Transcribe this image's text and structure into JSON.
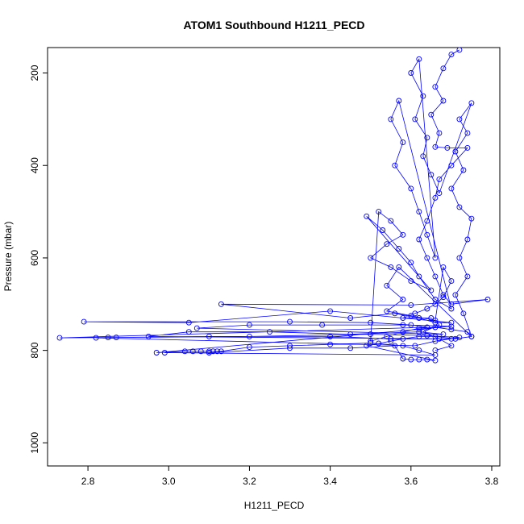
{
  "chart_data": {
    "type": "line",
    "title": "ATOM1 Southbound H1211_PECD",
    "xlabel": "H1211_PECD",
    "ylabel": "Pressure (mbar)",
    "xlim": [
      2.7,
      3.82
    ],
    "ylim": [
      1050,
      145
    ],
    "y_reversed": true,
    "x_ticks": [
      2.8,
      3.0,
      3.2,
      3.4,
      3.6,
      3.8
    ],
    "x_tick_labels": [
      "2.8",
      "3.0",
      "3.2",
      "3.4",
      "3.6",
      "3.8"
    ],
    "y_ticks": [
      200,
      400,
      600,
      800,
      1000
    ],
    "y_tick_labels": [
      "200",
      "400",
      "600",
      "800",
      "1000"
    ],
    "grid": false,
    "legend": "none",
    "series": [
      {
        "color": "#0000ff",
        "marker": "open-circle",
        "points": [
          [
            3.72,
            150
          ],
          [
            3.7,
            160
          ],
          [
            3.68,
            190
          ],
          [
            3.66,
            230
          ],
          [
            3.68,
            260
          ],
          [
            3.65,
            290
          ],
          [
            3.67,
            330
          ],
          [
            3.66,
            360
          ],
          [
            3.69,
            362
          ],
          [
            3.74,
            362
          ],
          [
            3.7,
            400
          ],
          [
            3.67,
            430
          ],
          [
            3.66,
            470
          ],
          [
            3.64,
            520
          ],
          [
            3.62,
            560
          ],
          [
            3.64,
            600
          ],
          [
            3.66,
            640
          ],
          [
            3.68,
            680
          ],
          [
            3.7,
            700
          ],
          [
            3.79,
            690
          ],
          [
            3.6,
            702
          ],
          [
            3.13,
            700
          ],
          [
            3.45,
            730
          ],
          [
            3.56,
            720
          ],
          [
            3.62,
            730
          ],
          [
            3.66,
            740
          ],
          [
            3.7,
            740
          ],
          [
            3.4,
            715
          ],
          [
            3.05,
            740
          ],
          [
            2.79,
            738
          ],
          [
            3.3,
            738
          ],
          [
            3.5,
            740
          ],
          [
            3.6,
            745
          ],
          [
            3.64,
            750
          ],
          [
            2.73,
            773
          ],
          [
            3.2,
            770
          ],
          [
            3.5,
            765
          ],
          [
            3.64,
            768
          ],
          [
            3.72,
            772
          ],
          [
            3.66,
            780
          ],
          [
            3.61,
            790
          ],
          [
            2.82,
            773
          ],
          [
            2.85,
            772
          ],
          [
            2.87,
            772
          ],
          [
            3.1,
            770
          ],
          [
            3.4,
            770
          ],
          [
            3.55,
            775
          ],
          [
            3.7,
            775
          ],
          [
            2.95,
            770
          ],
          [
            3.05,
            760
          ],
          [
            3.25,
            760
          ],
          [
            3.45,
            765
          ],
          [
            3.62,
            760
          ],
          [
            3.68,
            765
          ],
          [
            3.07,
            752
          ],
          [
            3.2,
            745
          ],
          [
            3.38,
            745
          ],
          [
            3.58,
            745
          ],
          [
            3.7,
            748
          ],
          [
            2.97,
            805
          ],
          [
            3.04,
            802
          ],
          [
            3.06,
            802
          ],
          [
            3.08,
            802
          ],
          [
            3.1,
            802
          ],
          [
            3.11,
            802
          ],
          [
            3.12,
            802
          ],
          [
            3.13,
            802
          ],
          [
            3.2,
            793
          ],
          [
            3.3,
            790
          ],
          [
            3.4,
            787
          ],
          [
            3.5,
            784
          ],
          [
            3.58,
            790
          ],
          [
            3.62,
            800
          ],
          [
            3.66,
            810
          ],
          [
            2.99,
            805
          ],
          [
            3.1,
            805
          ],
          [
            3.3,
            795
          ],
          [
            3.45,
            795
          ],
          [
            3.56,
            790
          ],
          [
            3.58,
            818
          ],
          [
            3.6,
            820
          ],
          [
            3.62,
            820
          ],
          [
            3.64,
            820
          ],
          [
            3.66,
            822
          ],
          [
            3.49,
            790
          ],
          [
            3.52,
            785
          ],
          [
            3.55,
            780
          ],
          [
            3.58,
            775
          ],
          [
            3.62,
            770
          ],
          [
            3.66,
            770
          ],
          [
            3.71,
            775
          ],
          [
            3.75,
            770
          ],
          [
            3.74,
            760
          ],
          [
            3.7,
            755
          ],
          [
            3.66,
            750
          ],
          [
            3.62,
            752
          ],
          [
            3.58,
            760
          ],
          [
            3.54,
            770
          ],
          [
            3.5,
            780
          ],
          [
            3.52,
            500
          ],
          [
            3.55,
            520
          ],
          [
            3.58,
            550
          ],
          [
            3.54,
            570
          ],
          [
            3.5,
            600
          ],
          [
            3.55,
            620
          ],
          [
            3.6,
            650
          ],
          [
            3.65,
            670
          ],
          [
            3.49,
            510
          ],
          [
            3.53,
            540
          ],
          [
            3.57,
            580
          ],
          [
            3.6,
            610
          ],
          [
            3.62,
            640
          ],
          [
            3.66,
            690
          ],
          [
            3.7,
            710
          ],
          [
            3.57,
            260
          ],
          [
            3.55,
            300
          ],
          [
            3.58,
            350
          ],
          [
            3.56,
            400
          ],
          [
            3.6,
            450
          ],
          [
            3.62,
            500
          ],
          [
            3.64,
            550
          ],
          [
            3.66,
            600
          ],
          [
            3.62,
            170
          ],
          [
            3.6,
            200
          ],
          [
            3.63,
            250
          ],
          [
            3.61,
            300
          ],
          [
            3.64,
            340
          ],
          [
            3.63,
            380
          ],
          [
            3.65,
            420
          ],
          [
            3.67,
            460
          ],
          [
            3.75,
            265
          ],
          [
            3.72,
            300
          ],
          [
            3.74,
            330
          ],
          [
            3.71,
            370
          ],
          [
            3.73,
            410
          ],
          [
            3.7,
            450
          ],
          [
            3.72,
            490
          ],
          [
            3.75,
            515
          ],
          [
            3.74,
            560
          ],
          [
            3.72,
            600
          ],
          [
            3.74,
            640
          ],
          [
            3.71,
            680
          ],
          [
            3.73,
            720
          ],
          [
            3.75,
            770
          ],
          [
            3.57,
            620
          ],
          [
            3.54,
            660
          ],
          [
            3.58,
            690
          ],
          [
            3.54,
            715
          ],
          [
            3.6,
            725
          ],
          [
            3.66,
            735
          ],
          [
            3.68,
            620
          ],
          [
            3.7,
            650
          ],
          [
            3.68,
            685
          ],
          [
            3.66,
            700
          ],
          [
            3.64,
            710
          ],
          [
            3.61,
            720
          ],
          [
            3.58,
            730
          ],
          [
            3.65,
            730
          ],
          [
            3.67,
            745
          ],
          [
            3.63,
            760
          ],
          [
            3.67,
            775
          ],
          [
            3.7,
            790
          ],
          [
            3.66,
            800
          ]
        ]
      }
    ]
  }
}
